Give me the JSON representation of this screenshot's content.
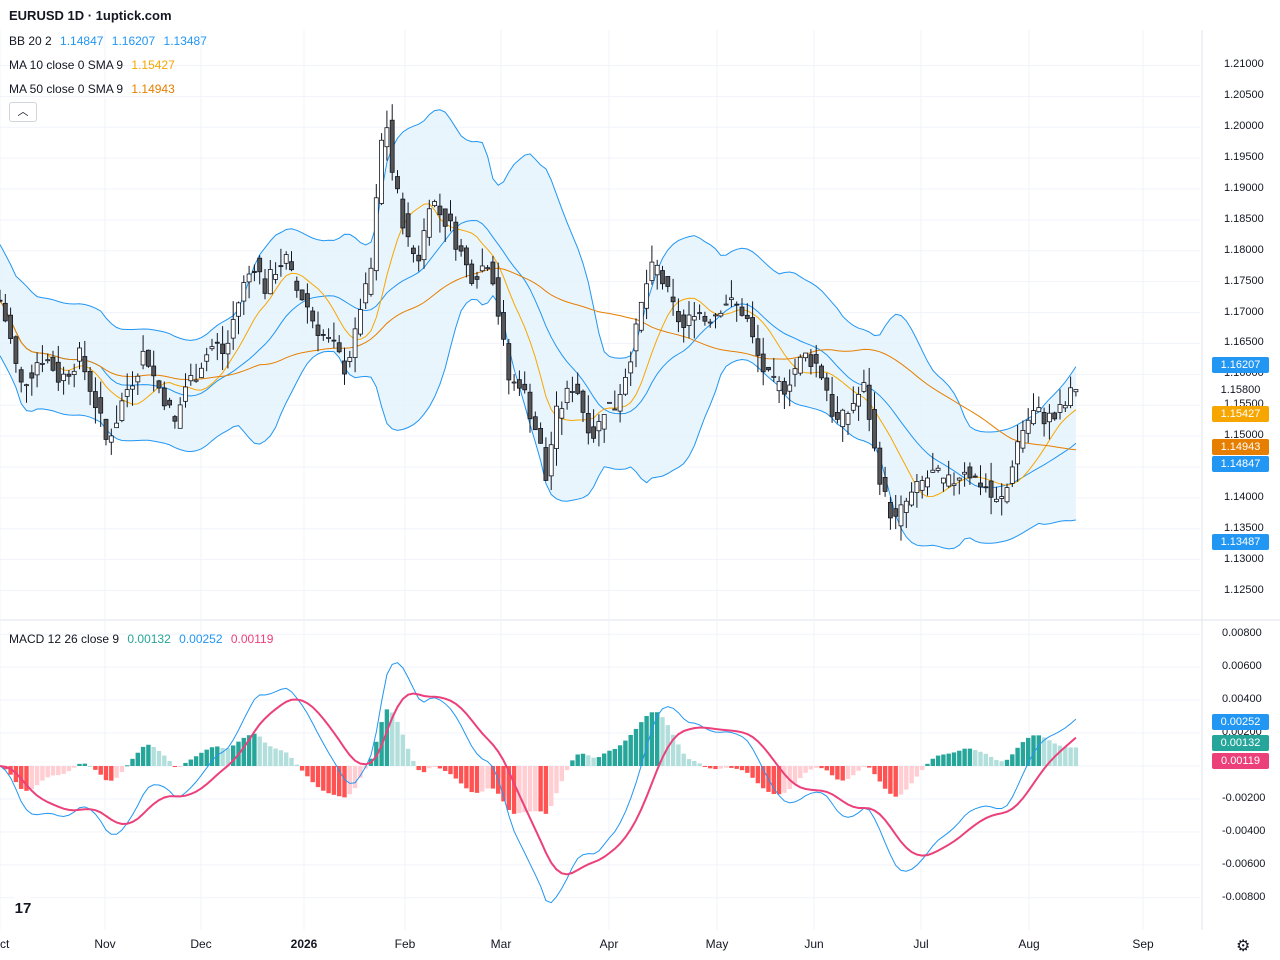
{
  "header": {
    "title": "EURUSD 1D · 1uptick.com"
  },
  "legend": {
    "bb": {
      "label": "BB 20 2",
      "basis": "1.14847",
      "upper": "1.16207",
      "lower": "1.13487"
    },
    "ma10": {
      "label": "MA 10 close 0 SMA 9",
      "value": "1.15427"
    },
    "ma50": {
      "label": "MA 50 close 0 SMA 9",
      "value": "1.14943"
    },
    "macd": {
      "label": "MACD 12 26 close 9",
      "hist": "0.00132",
      "macd": "0.00252",
      "signal": "0.00119"
    },
    "collapse_icon": "chevron-up-icon"
  },
  "price_badges": [
    {
      "value": "1.16207",
      "color": "#2196f3"
    },
    {
      "value": "1.15800",
      "color": "#ffffff"
    },
    {
      "value": "1.15427",
      "color": "#f7a600"
    },
    {
      "value": "1.14943",
      "color": "#e67e00"
    },
    {
      "value": "1.14847",
      "color": "#2196f3"
    },
    {
      "value": "1.13487",
      "color": "#2196f3"
    }
  ],
  "macd_badges": [
    {
      "value": "0.00252",
      "color": "#2196f3"
    },
    {
      "value": "0.00132",
      "color": "#26a69a"
    },
    {
      "value": "0.00119",
      "color": "#ec407a"
    }
  ],
  "price_axis": [
    "1.21000",
    "1.20500",
    "1.20000",
    "1.19500",
    "1.19000",
    "1.18500",
    "1.18000",
    "1.17500",
    "1.17000",
    "1.16500",
    "1.16000",
    "1.15500",
    "1.15000",
    "1.14500",
    "1.14000",
    "1.13500",
    "1.13000",
    "1.12500"
  ],
  "macd_axis": [
    "0.00800",
    "0.00600",
    "0.00400",
    "0.00200",
    "0.00000",
    "-0.00200",
    "-0.00400",
    "-0.00600",
    "-0.00800"
  ],
  "months": [
    "Oct",
    "Nov",
    "Dec",
    "2026",
    "Feb",
    "Mar",
    "Apr",
    "May",
    "Jun",
    "Jul",
    "Aug",
    "Sep"
  ],
  "colors": {
    "up": "#ffffff",
    "down": "#555555",
    "bb_line": "#2196f3",
    "bb_fill": "#e3f2fd",
    "ma10": "#f7a600",
    "ma50": "#e67e00",
    "macd": "#2196f3",
    "signal": "#ec407a",
    "hist_up_strong": "#26a69a",
    "hist_up_weak": "#b2dfdb",
    "hist_down_strong": "#ff5252",
    "hist_down_weak": "#ffcdd2"
  },
  "chart_data": {
    "type": "line",
    "title": "EURUSD 1D",
    "y_range": [
      1.1225,
      1.2125
    ],
    "macd_range": [
      -0.0085,
      0.0085
    ],
    "series": [
      {
        "name": "BB 20 2",
        "last_upper": 1.16207,
        "last_basis": 1.14847,
        "last_lower": 1.13487
      },
      {
        "name": "MA 10 close 0 SMA 9",
        "last": 1.15427
      },
      {
        "name": "MA 50 close 0 SMA 9",
        "last": 1.14943
      },
      {
        "name": "MACD 12 26 close 9",
        "histogram": 0.00132,
        "macd": 0.00252,
        "signal": 0.00119
      }
    ],
    "close_path": [
      [
        0,
        1.172
      ],
      [
        10,
        1.166
      ],
      [
        20,
        1.158
      ],
      [
        30,
        1.16
      ],
      [
        40,
        1.163
      ],
      [
        50,
        1.162
      ],
      [
        60,
        1.159
      ],
      [
        70,
        1.161
      ],
      [
        80,
        1.163
      ],
      [
        90,
        1.158
      ],
      [
        100,
        1.153
      ],
      [
        105,
        1.149
      ],
      [
        115,
        1.152
      ],
      [
        125,
        1.157
      ],
      [
        135,
        1.16
      ],
      [
        145,
        1.164
      ],
      [
        155,
        1.159
      ],
      [
        165,
        1.156
      ],
      [
        175,
        1.152
      ],
      [
        185,
        1.158
      ],
      [
        195,
        1.16
      ],
      [
        205,
        1.163
      ],
      [
        215,
        1.165
      ],
      [
        225,
        1.163
      ],
      [
        235,
        1.17
      ],
      [
        245,
        1.175
      ],
      [
        255,
        1.178
      ],
      [
        265,
        1.174
      ],
      [
        275,
        1.177
      ],
      [
        285,
        1.179
      ],
      [
        295,
        1.174
      ],
      [
        305,
        1.172
      ],
      [
        315,
        1.168
      ],
      [
        325,
        1.166
      ],
      [
        335,
        1.164
      ],
      [
        345,
        1.161
      ],
      [
        355,
        1.166
      ],
      [
        360,
        1.171
      ],
      [
        370,
        1.175
      ],
      [
        380,
        1.195
      ],
      [
        385,
        1.203
      ],
      [
        392,
        1.193
      ],
      [
        400,
        1.187
      ],
      [
        410,
        1.18
      ],
      [
        420,
        1.179
      ],
      [
        430,
        1.189
      ],
      [
        440,
        1.186
      ],
      [
        450,
        1.184
      ],
      [
        460,
        1.18
      ],
      [
        470,
        1.176
      ],
      [
        480,
        1.177
      ],
      [
        490,
        1.179
      ],
      [
        500,
        1.168
      ],
      [
        510,
        1.158
      ],
      [
        520,
        1.159
      ],
      [
        530,
        1.154
      ],
      [
        540,
        1.149
      ],
      [
        545,
        1.142
      ],
      [
        555,
        1.153
      ],
      [
        565,
        1.156
      ],
      [
        575,
        1.159
      ],
      [
        585,
        1.153
      ],
      [
        595,
        1.15
      ],
      [
        605,
        1.155
      ],
      [
        615,
        1.155
      ],
      [
        625,
        1.16
      ],
      [
        635,
        1.166
      ],
      [
        645,
        1.174
      ],
      [
        655,
        1.178
      ],
      [
        665,
        1.174
      ],
      [
        675,
        1.17
      ],
      [
        685,
        1.167
      ],
      [
        695,
        1.171
      ],
      [
        705,
        1.169
      ],
      [
        715,
        1.17
      ],
      [
        725,
        1.172
      ],
      [
        735,
        1.171
      ],
      [
        745,
        1.17
      ],
      [
        755,
        1.164
      ],
      [
        765,
        1.16
      ],
      [
        775,
        1.158
      ],
      [
        785,
        1.158
      ],
      [
        795,
        1.161
      ],
      [
        805,
        1.163
      ],
      [
        815,
        1.162
      ],
      [
        825,
        1.159
      ],
      [
        835,
        1.152
      ],
      [
        845,
        1.153
      ],
      [
        855,
        1.156
      ],
      [
        865,
        1.158
      ],
      [
        875,
        1.147
      ],
      [
        885,
        1.14
      ],
      [
        895,
        1.136
      ],
      [
        905,
        1.139
      ],
      [
        915,
        1.141
      ],
      [
        925,
        1.143
      ],
      [
        935,
        1.144
      ],
      [
        945,
        1.142
      ],
      [
        955,
        1.143
      ],
      [
        965,
        1.145
      ],
      [
        975,
        1.143
      ],
      [
        985,
        1.142
      ],
      [
        995,
        1.139
      ],
      [
        1005,
        1.14
      ],
      [
        1015,
        1.148
      ],
      [
        1025,
        1.152
      ],
      [
        1035,
        1.154
      ],
      [
        1045,
        1.153
      ],
      [
        1055,
        1.153
      ],
      [
        1065,
        1.155
      ],
      [
        1075,
        1.158
      ]
    ]
  }
}
